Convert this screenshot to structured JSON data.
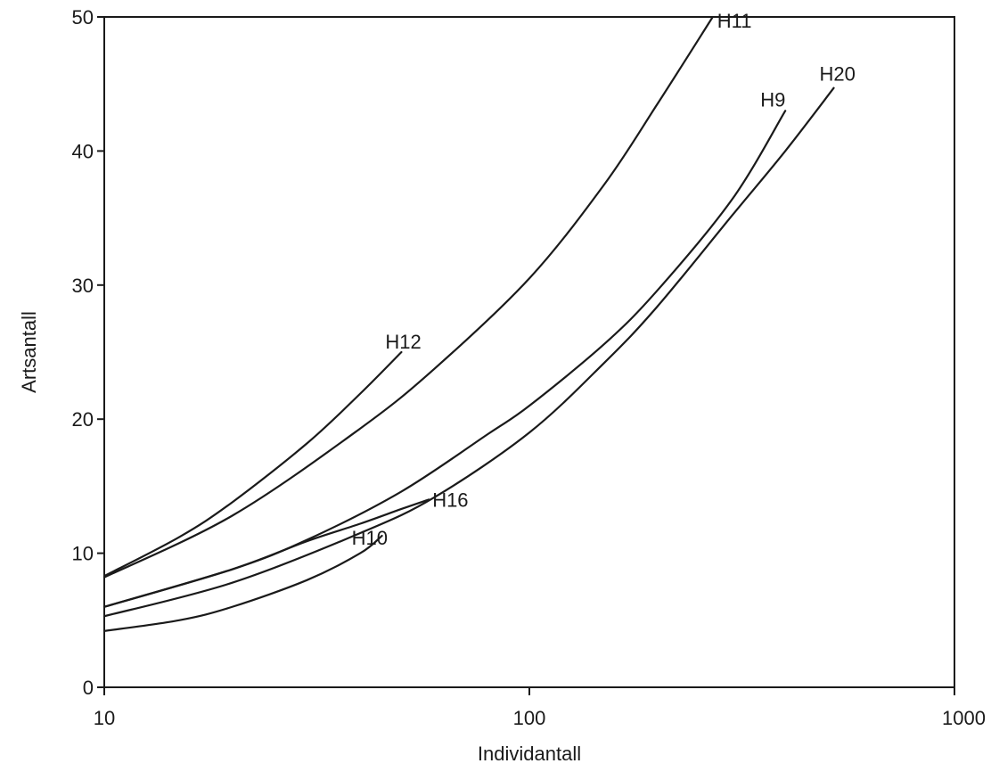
{
  "chart_data": {
    "type": "line",
    "title": "",
    "xlabel": "Individantall",
    "ylabel": "Artsantall",
    "x_scale": "log",
    "xlim": [
      10,
      1000
    ],
    "ylim": [
      0,
      50
    ],
    "x_ticks": [
      10,
      100,
      1000
    ],
    "x_tick_labels": [
      "10",
      "100",
      "1000"
    ],
    "y_ticks": [
      0,
      10,
      20,
      30,
      40,
      50
    ],
    "y_tick_labels": [
      "0",
      "10",
      "20",
      "30",
      "40",
      "50"
    ],
    "grid": false,
    "legend": "none",
    "series": [
      {
        "name": "H12",
        "x": [
          10,
          15,
          20,
          30,
          40,
          50
        ],
        "y": [
          8.3,
          11.2,
          13.8,
          18.2,
          21.9,
          25.0
        ]
      },
      {
        "name": "H11",
        "x": [
          10,
          20,
          40,
          60,
          100,
          150,
          200,
          270
        ],
        "y": [
          8.2,
          12.8,
          19.3,
          23.8,
          30.5,
          37.5,
          43.5,
          50.0
        ]
      },
      {
        "name": "H9",
        "x": [
          10,
          20,
          30,
          50,
          80,
          100,
          150,
          200,
          300,
          400
        ],
        "y": [
          6.0,
          8.8,
          11.0,
          14.6,
          18.9,
          21.0,
          25.6,
          29.6,
          36.4,
          43.0
        ]
      },
      {
        "name": "H20",
        "x": [
          10,
          20,
          40,
          60,
          100,
          150,
          200,
          300,
          400,
          520
        ],
        "y": [
          5.3,
          7.8,
          11.5,
          14.2,
          19.0,
          24.2,
          28.4,
          35.2,
          40.0,
          44.7
        ]
      },
      {
        "name": "H16",
        "x": [
          10,
          20,
          30,
          40,
          50,
          58
        ],
        "y": [
          6.0,
          8.8,
          10.9,
          12.2,
          13.3,
          14.0
        ]
      },
      {
        "name": "H10",
        "x": [
          10,
          15,
          20,
          30,
          40,
          45
        ],
        "y": [
          4.2,
          5.0,
          6.0,
          8.0,
          10.0,
          11.3
        ]
      }
    ]
  }
}
